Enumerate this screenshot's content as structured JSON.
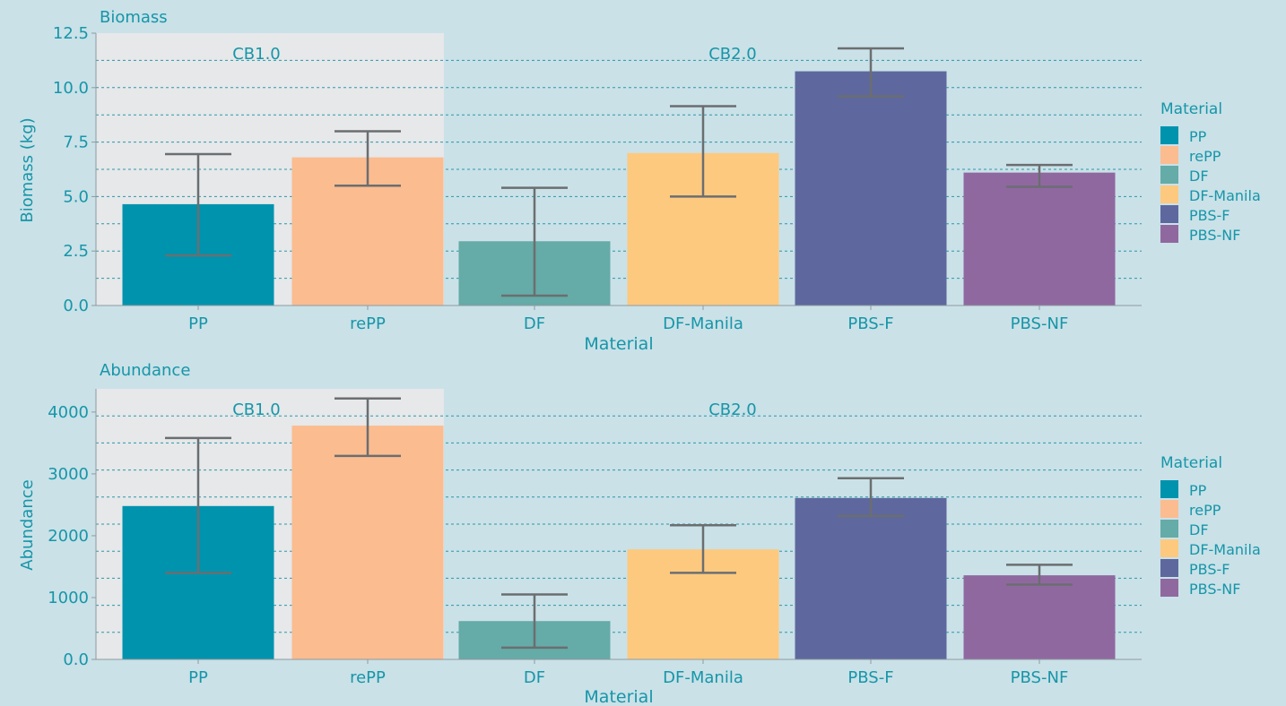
{
  "colors": {
    "background": "#cae1e8",
    "panel_shade": "#e6e8ea",
    "text": "#1696a8",
    "grid": "#2d97a8",
    "axis": "#8f9aa0",
    "errorbar": "#6b6e70"
  },
  "legend": {
    "title": "Material",
    "items": [
      {
        "label": "PP",
        "color": "#0093ad"
      },
      {
        "label": "rePP",
        "color": "#fbbc90"
      },
      {
        "label": "DF",
        "color": "#65aba7"
      },
      {
        "label": "DF-Manila",
        "color": "#fdc97f"
      },
      {
        "label": "PBS-F",
        "color": "#5e689e"
      },
      {
        "label": "PBS-NF",
        "color": "#9068a0"
      }
    ]
  },
  "chart_data": [
    {
      "type": "bar",
      "title": "Biomass",
      "xlabel": "Material",
      "ylabel": "Biomass (kg)",
      "categories": [
        "PP",
        "rePP",
        "DF",
        "DF-Manila",
        "PBS-F",
        "PBS-NF"
      ],
      "values": [
        4.65,
        6.8,
        2.95,
        7.0,
        10.75,
        6.1
      ],
      "error_low": [
        2.3,
        5.5,
        0.45,
        5.0,
        9.6,
        5.45
      ],
      "error_high": [
        6.95,
        8.0,
        5.4,
        9.15,
        11.8,
        6.45
      ],
      "ylim": [
        0,
        12.5
      ],
      "yticks": [
        0.0,
        2.5,
        5.0,
        7.5,
        10.0,
        12.5
      ],
      "ytick_labels": [
        "0.0",
        "2.5",
        "5.0",
        "7.5",
        "10.0",
        "12.5"
      ],
      "gridlines": [
        1.25,
        2.5,
        3.75,
        5.0,
        6.25,
        7.5,
        8.75,
        10.0,
        11.25
      ],
      "groups": [
        {
          "label": "CB1.0",
          "categories": [
            "PP",
            "rePP"
          ],
          "shaded": true
        },
        {
          "label": "CB2.0",
          "categories": [
            "DF",
            "DF-Manila",
            "PBS-F",
            "PBS-NF"
          ],
          "shaded": false
        }
      ],
      "legend_position": "right"
    },
    {
      "type": "bar",
      "title": "Abundance",
      "xlabel": "Material",
      "ylabel": "Abundance",
      "categories": [
        "PP",
        "rePP",
        "DF",
        "DF-Manila",
        "PBS-F",
        "PBS-NF"
      ],
      "values": [
        2480,
        3780,
        620,
        1780,
        2610,
        1360
      ],
      "error_low": [
        1400,
        3290,
        190,
        1400,
        2320,
        1210
      ],
      "error_high": [
        3580,
        4220,
        1050,
        2170,
        2930,
        1530
      ],
      "ylim": [
        0,
        4375
      ],
      "yticks": [
        0,
        1000,
        2000,
        3000,
        4000
      ],
      "ytick_labels": [
        "0.0",
        "1000",
        "2000",
        "3000",
        "4000"
      ],
      "gridlines": [
        437.5,
        875,
        1312.5,
        1750,
        2187.5,
        2625,
        3062.5,
        3500,
        3937.5
      ],
      "groups": [
        {
          "label": "CB1.0",
          "categories": [
            "PP",
            "rePP"
          ],
          "shaded": true
        },
        {
          "label": "CB2.0",
          "categories": [
            "DF",
            "DF-Manila",
            "PBS-F",
            "PBS-NF"
          ],
          "shaded": false
        }
      ],
      "legend_position": "right"
    }
  ]
}
